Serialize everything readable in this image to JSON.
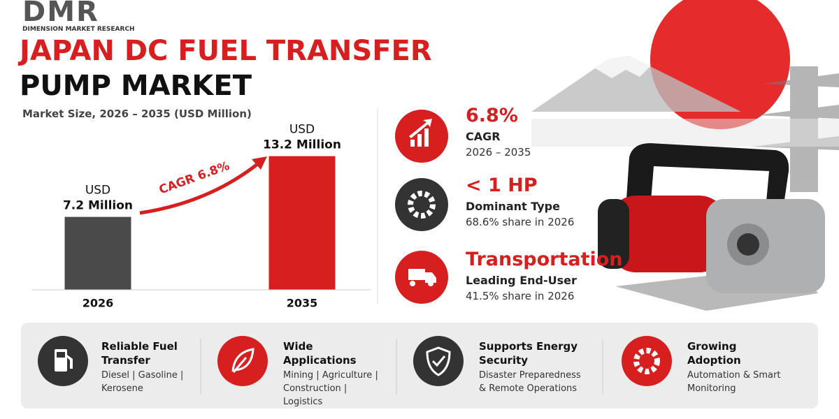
{
  "header": {
    "logo": "DMR",
    "company": "DIMENSION MARKET RESEARCH",
    "title_line1": "JAPAN DC FUEL TRANSFER",
    "title_line2": "PUMP MARKET"
  },
  "chart_data": {
    "type": "bar",
    "subtitle": "Market Size, 2026 – 2035 (USD Million)",
    "categories": [
      "2026",
      "2035"
    ],
    "values": [
      7.2,
      13.2
    ],
    "value_labels": [
      [
        "USD",
        "7.2 Million"
      ],
      [
        "USD",
        "13.2 Million"
      ]
    ],
    "colors": [
      "#4a4a4a",
      "#d71f1f"
    ],
    "annotation": "CAGR 6.8%"
  },
  "stats": [
    {
      "value": "6.8%",
      "label": "CAGR",
      "detail": "2026 – 2035"
    },
    {
      "value": "< 1 HP",
      "label": "Dominant Type",
      "detail": "68.6% share in 2026"
    },
    {
      "value": "Transportation",
      "label": "Leading End-User",
      "detail": "41.5% share in 2026"
    }
  ],
  "features": [
    {
      "title": "Reliable Fuel Transfer",
      "text": "Diesel | Gasoline | Kerosene"
    },
    {
      "title": "Wide Applications",
      "text": "Mining | Agriculture | Construction | Logistics"
    },
    {
      "title": "Supports Energy Security",
      "text": "Disaster Preparedness & Remote Operations"
    },
    {
      "title": "Growing Adoption",
      "text": "Automation & Smart Monitoring"
    }
  ]
}
